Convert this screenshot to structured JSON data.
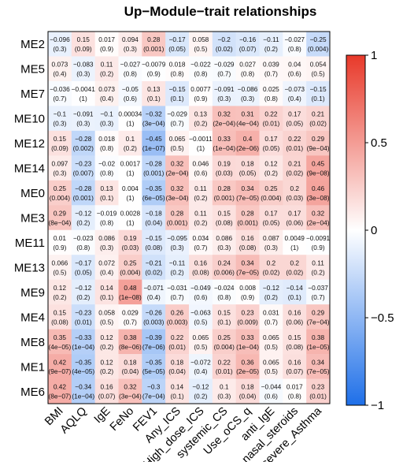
{
  "chart_data": {
    "type": "heatmap",
    "title": "Up−Module−trait relationships",
    "rows": [
      "ME2",
      "ME5",
      "ME7",
      "ME10",
      "ME12",
      "ME14",
      "ME0",
      "ME3",
      "ME11",
      "ME13",
      "ME9",
      "ME4",
      "ME8",
      "ME1",
      "ME6"
    ],
    "columns": [
      "BMI",
      "AQLQ",
      "IgE",
      "FeNo",
      "FEV1",
      "Any_ICS",
      "High_dose_ICS",
      "systemic_CS",
      "Use_oCS_q",
      "anti_IgE",
      "nasal_steroids",
      "severe_Asthma"
    ],
    "values": [
      [
        "−0.096",
        "0.15",
        "0.017",
        "0.094",
        "0.28",
        "−0.17",
        "0.058",
        "−0.2",
        "−0.16",
        "−0.11",
        "−0.027",
        "−0.25"
      ],
      [
        "0.073",
        "−0.083",
        "0.11",
        "−0.027",
        "−0.0079",
        "0.018",
        "−0.022",
        "−0.029",
        "0.027",
        "0.039",
        "0.04",
        "0.054"
      ],
      [
        "−0.036",
        "−0.0041",
        "0.073",
        "−0.05",
        "0.13",
        "−0.15",
        "0.0077",
        "−0.091",
        "−0.086",
        "0.025",
        "−0.073",
        "−0.15"
      ],
      [
        "−0.1",
        "−0.091",
        "−0.1",
        "0.00034",
        "−0.32",
        "−0.029",
        "0.13",
        "0.32",
        "0.31",
        "0.22",
        "0.17",
        "0.21"
      ],
      [
        "0.15",
        "−0.28",
        "0.018",
        "0.1",
        "−0.45",
        "0.065",
        "−0.0011",
        "0.33",
        "0.4",
        "0.17",
        "0.22",
        "0.29"
      ],
      [
        "0.097",
        "−0.23",
        "−0.02",
        "0.0017",
        "−0.28",
        "0.32",
        "0.046",
        "0.19",
        "0.18",
        "0.12",
        "0.21",
        "0.45"
      ],
      [
        "0.25",
        "−0.28",
        "0.13",
        "0.004",
        "−0.35",
        "0.32",
        "0.11",
        "0.28",
        "0.34",
        "0.25",
        "0.2",
        "0.46"
      ],
      [
        "0.29",
        "−0.12",
        "−0.019",
        "0.0028",
        "−0.18",
        "0.28",
        "0.11",
        "0.15",
        "0.28",
        "0.17",
        "0.17",
        "0.32"
      ],
      [
        "0.01",
        "−0.023",
        "0.086",
        "0.19",
        "−0.15",
        "−0.095",
        "0.034",
        "0.086",
        "0.16",
        "0.087",
        "0.0049",
        "−0.0091"
      ],
      [
        "0.066",
        "−0.17",
        "0.072",
        "0.25",
        "−0.21",
        "−0.11",
        "0.16",
        "0.24",
        "0.34",
        "0.2",
        "0.2",
        "0.11"
      ],
      [
        "0.12",
        "−0.12",
        "0.14",
        "0.48",
        "−0.071",
        "−0.031",
        "−0.049",
        "−0.024",
        "0.008",
        "−0.12",
        "−0.14",
        "−0.037"
      ],
      [
        "0.15",
        "−0.23",
        "0.058",
        "0.029",
        "−0.26",
        "0.26",
        "−0.063",
        "0.15",
        "0.23",
        "0.031",
        "0.16",
        "0.29"
      ],
      [
        "0.35",
        "−0.33",
        "0.12",
        "0.38",
        "−0.39",
        "0.22",
        "0.065",
        "0.25",
        "0.33",
        "0.065",
        "0.15",
        "0.38"
      ],
      [
        "0.42",
        "−0.35",
        "0.12",
        "0.18",
        "−0.35",
        "0.18",
        "−0.072",
        "0.22",
        "0.36",
        "0.065",
        "0.16",
        "0.34"
      ],
      [
        "0.42",
        "−0.34",
        "0.16",
        "0.32",
        "−0.3",
        "0.14",
        "−0.12",
        "0.1",
        "0.18",
        "−0.044",
        "0.017",
        "0.23"
      ]
    ],
    "pvalues": [
      [
        "(0.3)",
        "(0.09)",
        "(0.9)",
        "(0.3)",
        "(0.001)",
        "(0.05)",
        "(0.5)",
        "(0.02)",
        "(0.07)",
        "(0.2)",
        "(0.8)",
        "(0.004)"
      ],
      [
        "(0.4)",
        "(0.3)",
        "(0.2)",
        "(0.8)",
        "(0.9)",
        "(0.8)",
        "(0.8)",
        "(0.7)",
        "(0.8)",
        "(0.7)",
        "(0.6)",
        "(0.5)"
      ],
      [
        "(0.7)",
        "(1)",
        "(0.4)",
        "(0.6)",
        "(0.1)",
        "(0.1)",
        "(0.9)",
        "(0.3)",
        "(0.3)",
        "(0.8)",
        "(0.4)",
        "(0.1)"
      ],
      [
        "(0.3)",
        "(0.3)",
        "(0.3)",
        "(1)",
        "(3e−04)",
        "(0.7)",
        "(0.2)",
        "(2e−04)",
        "(4e−04)",
        "(0.01)",
        "(0.05)",
        "(0.02)"
      ],
      [
        "(0.09)",
        "(0.002)",
        "(0.8)",
        "(0.2)",
        "(1e−07)",
        "(0.5)",
        "(1)",
        "(1e−04)",
        "(2e−06)",
        "(0.05)",
        "(0.01)",
        "(9e−04)"
      ],
      [
        "(0.3)",
        "(0.007)",
        "(0.8)",
        "(1)",
        "(0.001)",
        "(2e−04)",
        "(0.6)",
        "(0.03)",
        "(0.05)",
        "(0.2)",
        "(0.02)",
        "(9e−08)"
      ],
      [
        "(0.004)",
        "(0.001)",
        "(0.1)",
        "(1)",
        "(6e−05)",
        "(3e−04)",
        "(0.2)",
        "(0.001)",
        "(7e−05)",
        "(0.004)",
        "(0.03)",
        "(3e−08)"
      ],
      [
        "(8e−04)",
        "(0.2)",
        "(0.8)",
        "(1)",
        "(0.04)",
        "(0.001)",
        "(0.2)",
        "(0.08)",
        "(0.001)",
        "(0.05)",
        "(0.06)",
        "(2e−04)"
      ],
      [
        "(0.9)",
        "(0.8)",
        "(0.3)",
        "(0.03)",
        "(0.08)",
        "(0.3)",
        "(0.7)",
        "(0.3)",
        "(0.08)",
        "(0.3)",
        "(1)",
        "(0.9)"
      ],
      [
        "(0.5)",
        "(0.05)",
        "(0.4)",
        "(0.004)",
        "(0.02)",
        "(0.2)",
        "(0.08)",
        "(0.006)",
        "(7e−05)",
        "(0.02)",
        "(0.02)",
        "(0.2)"
      ],
      [
        "(0.2)",
        "(0.2)",
        "(0.1)",
        "(1e−08)",
        "(0.4)",
        "(0.7)",
        "(0.6)",
        "(0.8)",
        "(0.9)",
        "(0.2)",
        "(0.1)",
        "(0.7)"
      ],
      [
        "(0.08)",
        "(0.01)",
        "(0.5)",
        "(0.7)",
        "(0.003)",
        "(0.003)",
        "(0.5)",
        "(0.1)",
        "(0.009)",
        "(0.7)",
        "(0.06)",
        "(7e−04)"
      ],
      [
        "(4e−05)",
        "(1e−04)",
        "(0.2)",
        "(8e−06)",
        "(7e−06)",
        "(0.01)",
        "(0.5)",
        "(0.004)",
        "(1e−04)",
        "(0.5)",
        "(0.08)",
        "(1e−05)"
      ],
      [
        "(9e−07)",
        "(4e−05)",
        "(0.2)",
        "(0.04)",
        "(5e−05)",
        "(0.04)",
        "(0.4)",
        "(0.01)",
        "(2e−05)",
        "(0.5)",
        "(0.07)",
        "(7e−05)"
      ],
      [
        "(8e−07)",
        "(1e−04)",
        "(0.07)",
        "(3e−04)",
        "(7e−04)",
        "(0.1)",
        "(0.2)",
        "(0.3)",
        "(0.04)",
        "(0.6)",
        "(0.8)",
        "(0.01)"
      ]
    ],
    "colorbar": {
      "range": [
        -1,
        1
      ],
      "ticks": [
        "1",
        "0.5",
        "0",
        "−0.5",
        "−1"
      ],
      "colors": {
        "low": "#1E6FE8",
        "mid": "#FFFFFF",
        "high": "#E8392A"
      }
    }
  }
}
